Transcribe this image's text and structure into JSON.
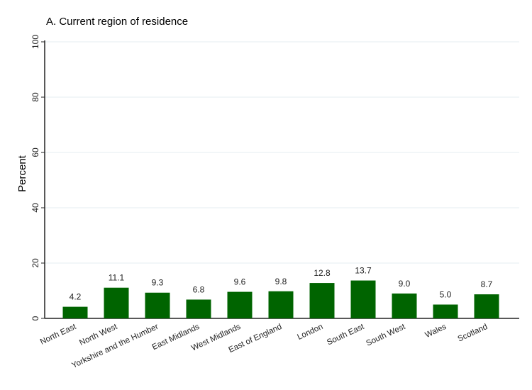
{
  "chart_data": {
    "type": "bar",
    "title": "A. Current region of residence",
    "xlabel": "",
    "ylabel": "Percent",
    "ylim": [
      0,
      100
    ],
    "yticks": [
      0,
      20,
      40,
      60,
      80,
      100
    ],
    "grid": true,
    "categories": [
      "North East",
      "North West",
      "Yorkshire and the Humber",
      "East Midlands",
      "West Midlands",
      "East of England",
      "London",
      "South East",
      "South West",
      "Wales",
      "Scotland"
    ],
    "values": [
      4.2,
      11.1,
      9.3,
      6.8,
      9.6,
      9.8,
      12.8,
      13.7,
      9.0,
      5.0,
      8.7
    ],
    "value_labels": [
      "4.2",
      "11.1",
      "9.3",
      "6.8",
      "9.6",
      "9.8",
      "12.8",
      "13.7",
      "9.0",
      "5.0",
      "8.7"
    ],
    "colors": {
      "bar": "#006400",
      "grid": "#e6eef0",
      "axis": "#222222",
      "title": "#1a2a4a"
    }
  }
}
